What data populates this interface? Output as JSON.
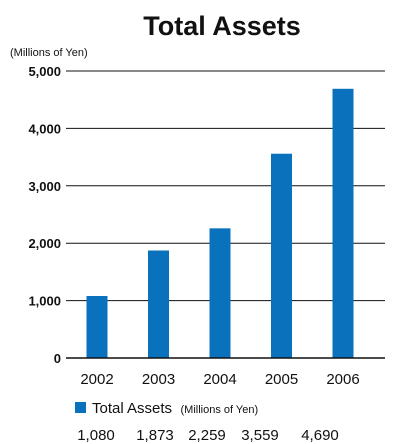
{
  "chart_data": {
    "type": "bar",
    "title": "Total Assets",
    "ylabel": "(Millions of Yen)",
    "xlabel": "",
    "categories": [
      "2002",
      "2003",
      "2004",
      "2005",
      "2006"
    ],
    "series": [
      {
        "name": "Total Assets",
        "values": [
          1080,
          1873,
          2259,
          3559,
          4690
        ],
        "color": "#0a72bd"
      }
    ],
    "ylim": [
      0,
      5000
    ],
    "yticks": [
      "0",
      "1,000",
      "2,000",
      "3,000",
      "4,000",
      "5,000"
    ],
    "grid": true,
    "legend": {
      "position": "bottom-left",
      "label": "Total Assets",
      "unit": "(Millions of Yen)"
    },
    "value_labels": [
      "1,080",
      "1,873",
      "2,259",
      "3,559",
      "4,690"
    ]
  }
}
